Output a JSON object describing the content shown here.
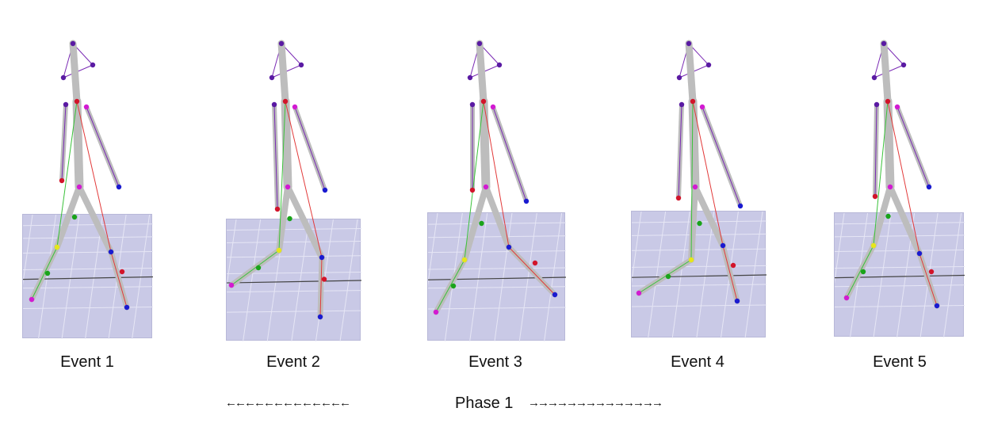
{
  "events": [
    {
      "label": "Event 1"
    },
    {
      "label": "Event 2"
    },
    {
      "label": "Event 3"
    },
    {
      "label": "Event 4"
    },
    {
      "label": "Event 5"
    }
  ],
  "phase": {
    "label": "Phase 1",
    "left_arrows": "←←←←←←←←←←←←←",
    "right_arrows": "→→→→→→→→→→→→→→"
  },
  "colors": {
    "floor": "#c9c9e6",
    "bone": "#bdbdbd",
    "joint_red": "#d2142a",
    "joint_blue": "#1a1ad0",
    "joint_green": "#1aa31a",
    "joint_magenta": "#d21ad2",
    "joint_purple": "#5a1aa3",
    "joint_yellow": "#e6e61a",
    "line_purple": "#7a2ab4",
    "line_red": "#e23a3a",
    "line_green": "#3ac23a"
  }
}
